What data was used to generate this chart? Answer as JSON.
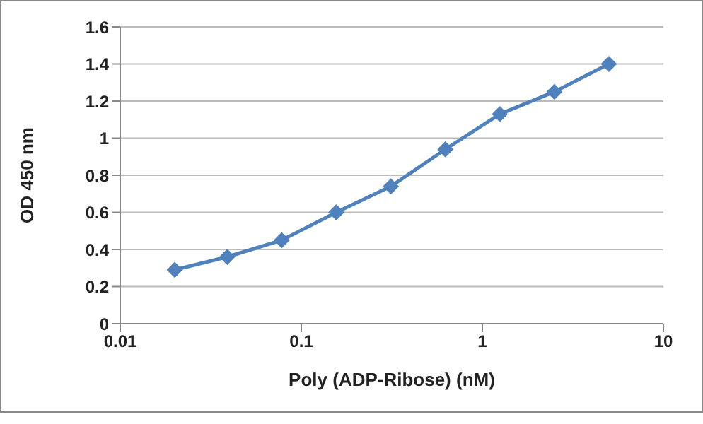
{
  "chart_data": {
    "type": "line",
    "xlabel": "Poly (ADP-Ribose) (nM)",
    "ylabel": "OD 450 nm",
    "x": [
      0.02,
      0.039,
      0.078,
      0.156,
      0.3125,
      0.625,
      1.25,
      2.5,
      5
    ],
    "series": [
      {
        "color": "#4f81bd",
        "values": [
          0.29,
          0.36,
          0.45,
          0.6,
          0.74,
          0.94,
          1.13,
          1.25,
          1.4
        ]
      }
    ],
    "xlim": [
      0.01,
      10
    ],
    "xticks": [
      0.01,
      0.1,
      1,
      10
    ],
    "ylim": [
      0,
      1.6
    ],
    "yticks": [
      0,
      0.2,
      0.4,
      0.6,
      0.8,
      1,
      1.2,
      1.4,
      1.6
    ],
    "log": "x",
    "grid": "y",
    "marker": "diamond",
    "line_style": "solid",
    "legend": false
  }
}
